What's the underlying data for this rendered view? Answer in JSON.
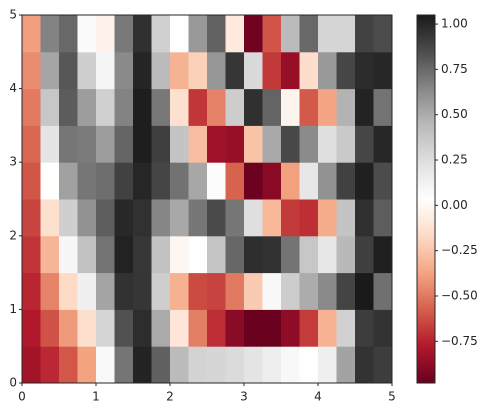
{
  "chart_data": {
    "type": "heatmap",
    "xlim": [
      0,
      5
    ],
    "ylim": [
      0,
      5
    ],
    "xticks": [
      0,
      1,
      2,
      3,
      4,
      5
    ],
    "yticks": [
      0,
      1,
      2,
      3,
      4,
      5
    ],
    "clim": [
      -0.98,
      1.05
    ],
    "cticks": [
      {
        "value": -0.75,
        "label": "−0.75"
      },
      {
        "value": -0.5,
        "label": "−0.50"
      },
      {
        "value": -0.25,
        "label": "−0.25"
      },
      {
        "value": 0,
        "label": "0.00"
      },
      {
        "value": 0.25,
        "label": "0.25"
      },
      {
        "value": 0.5,
        "label": "0.50"
      },
      {
        "value": 0.75,
        "label": "0.75"
      },
      {
        "value": 1,
        "label": "1.00"
      }
    ],
    "colormap": [
      "#67001f",
      "#b2182b",
      "#d6604d",
      "#f4a582",
      "#fddbc7",
      "#ffffff",
      "#e0e0e0",
      "#bababa",
      "#878787",
      "#4d4d4d",
      "#1a1a1a"
    ],
    "z": [
      [
        -0.815,
        -0.73,
        -0.598,
        -0.378,
        0.076,
        0.707,
        1.015,
        0.776,
        0.434,
        0.308,
        0.29,
        0.263,
        0.213,
        0.147,
        0.079,
        0.039,
        0.138,
        0.532,
        0.949,
        0.912
      ],
      [
        -0.778,
        -0.61,
        -0.403,
        -0.143,
        0.293,
        0.832,
        0.973,
        0.506,
        -0.098,
        -0.483,
        -0.718,
        -0.885,
        -0.975,
        -0.972,
        -0.875,
        -0.679,
        -0.322,
        0.316,
        0.909,
        0.951
      ],
      [
        -0.739,
        -0.468,
        -0.167,
        0.134,
        0.53,
        0.954,
        0.938,
        0.333,
        -0.326,
        -0.637,
        -0.656,
        -0.498,
        -0.228,
        0.079,
        0.338,
        0.498,
        0.631,
        0.884,
        1.05,
        0.726
      ],
      [
        -0.695,
        -0.31,
        0.085,
        0.398,
        0.714,
        1.017,
        0.933,
        0.399,
        -0.016,
        0.04,
        0.383,
        0.756,
        0.972,
        0.954,
        0.712,
        0.372,
        0.191,
        0.443,
        0.899,
        1.03
      ],
      [
        -0.65,
        -0.141,
        0.328,
        0.601,
        0.789,
        0.993,
        0.96,
        0.649,
        0.512,
        0.699,
        0.853,
        0.699,
        0.245,
        -0.302,
        -0.681,
        -0.716,
        -0.346,
        0.385,
        0.962,
        0.791
      ],
      [
        -0.601,
        0.033,
        0.541,
        0.704,
        0.731,
        0.893,
        1.003,
        0.88,
        0.719,
        0.516,
        0.052,
        -0.566,
        -0.967,
        -0.884,
        -0.385,
        0.193,
        0.602,
        0.893,
        1.028,
        0.851
      ],
      [
        -0.551,
        0.206,
        0.703,
        0.687,
        0.557,
        0.762,
        1.034,
        0.902,
        0.39,
        -0.281,
        -0.826,
        -0.849,
        -0.26,
        0.508,
        0.865,
        0.629,
        0.244,
        0.363,
        0.876,
        0.999
      ],
      [
        -0.498,
        0.371,
        0.796,
        0.555,
        0.323,
        0.659,
        1.035,
        0.698,
        -0.137,
        -0.693,
        -0.474,
        0.34,
        0.963,
        0.766,
        -0.028,
        -0.591,
        -0.366,
        0.468,
        1.015,
        0.714
      ],
      [
        -0.444,
        0.523,
        0.813,
        0.331,
        0.101,
        0.632,
        1.005,
        0.435,
        -0.319,
        -0.205,
        0.58,
        0.94,
        0.277,
        -0.685,
        -0.852,
        -0.155,
        0.571,
        0.876,
        0.979,
        1.0
      ],
      [
        -0.388,
        0.658,
        0.751,
        0.059,
        -0.045,
        0.693,
        0.962,
        0.326,
        0.03,
        0.573,
        0.772,
        -0.091,
        -0.958,
        -0.606,
        0.436,
        0.753,
        0.296,
        0.299,
        0.889,
        0.849
      ]
    ]
  }
}
